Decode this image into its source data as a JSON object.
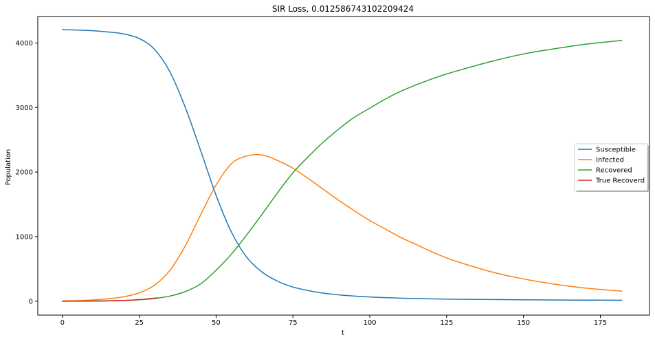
{
  "chart_data": {
    "type": "line",
    "title": "SIR Loss, 0.012586743102209424",
    "xlabel": "t",
    "ylabel": "Population",
    "xlim": [
      -8,
      191
    ],
    "ylim": [
      -215,
      4410
    ],
    "xticks": [
      0,
      25,
      50,
      75,
      100,
      125,
      150,
      175
    ],
    "yticks": [
      0,
      1000,
      2000,
      3000,
      4000
    ],
    "grid": false,
    "legend": {
      "position": "center-right"
    },
    "series": [
      {
        "name": "Susceptible",
        "color": "#1f77b4",
        "x": [
          0,
          5,
          10,
          15,
          20,
          25,
          30,
          35,
          40,
          45,
          50,
          55,
          60,
          65,
          70,
          75,
          80,
          85,
          90,
          95,
          100,
          105,
          110,
          115,
          120,
          125,
          130,
          140,
          150,
          160,
          170,
          182
        ],
        "y": [
          4205,
          4200,
          4190,
          4170,
          4140,
          4070,
          3900,
          3550,
          3000,
          2330,
          1640,
          1070,
          680,
          450,
          310,
          220,
          165,
          125,
          98,
          80,
          66,
          56,
          48,
          42,
          37,
          33,
          30,
          26,
          22,
          19,
          17,
          15
        ]
      },
      {
        "name": "Infected",
        "color": "#ff7f0e",
        "x": [
          0,
          5,
          10,
          15,
          20,
          25,
          30,
          35,
          40,
          45,
          50,
          55,
          60,
          65,
          70,
          75,
          80,
          85,
          90,
          95,
          100,
          105,
          110,
          115,
          120,
          125,
          130,
          140,
          150,
          160,
          170,
          182
        ],
        "y": [
          5,
          10,
          20,
          38,
          70,
          130,
          250,
          480,
          860,
          1340,
          1800,
          2130,
          2250,
          2265,
          2180,
          2060,
          1900,
          1730,
          1560,
          1400,
          1250,
          1120,
          990,
          880,
          770,
          670,
          590,
          450,
          345,
          265,
          205,
          155
        ]
      },
      {
        "name": "Recovered",
        "color": "#2ca02c",
        "x": [
          0,
          5,
          10,
          15,
          20,
          25,
          30,
          35,
          40,
          45,
          50,
          55,
          60,
          65,
          70,
          75,
          80,
          85,
          90,
          95,
          100,
          105,
          110,
          115,
          120,
          125,
          130,
          140,
          150,
          160,
          170,
          182
        ],
        "y": [
          0,
          1,
          3,
          6,
          12,
          22,
          42,
          80,
          150,
          270,
          480,
          730,
          1030,
          1350,
          1680,
          1990,
          2240,
          2470,
          2670,
          2850,
          2990,
          3130,
          3250,
          3350,
          3440,
          3520,
          3590,
          3720,
          3830,
          3910,
          3980,
          4040
        ]
      },
      {
        "name": "True Recoverd",
        "color": "#d62728",
        "x": [
          0,
          5,
          10,
          15,
          17,
          20,
          22,
          24,
          26,
          28,
          30,
          31
        ],
        "y": [
          0,
          1,
          2,
          5,
          10,
          12,
          15,
          22,
          28,
          38,
          48,
          52
        ]
      }
    ]
  }
}
